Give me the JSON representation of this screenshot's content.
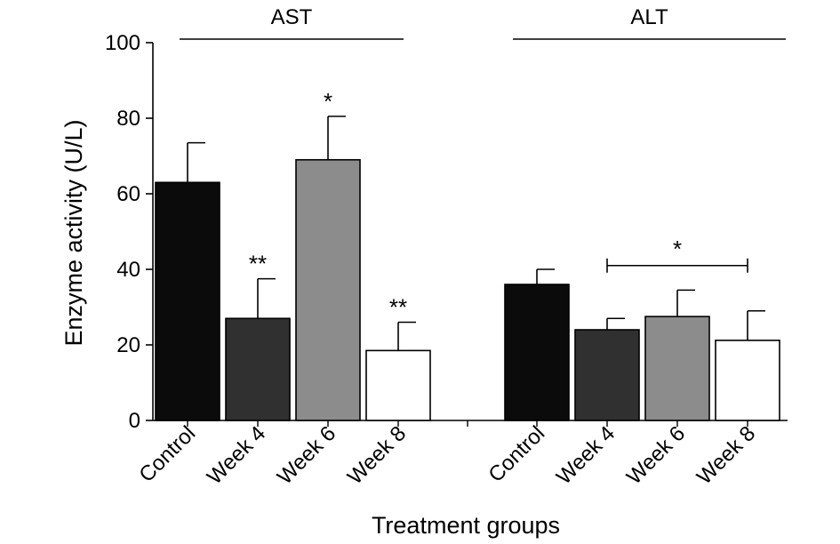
{
  "chart_data": {
    "type": "bar",
    "xlabel": "Treatment groups",
    "ylabel": "Enzyme activity (U/L)",
    "ylim": [
      0,
      100
    ],
    "yticks": [
      0,
      20,
      40,
      60,
      80,
      100
    ],
    "categories": [
      "Control",
      "Week 4",
      "Week 6",
      "Week 8"
    ],
    "bar_colors": [
      "#0b0b0b",
      "#303030",
      "#8c8c8c",
      "#ffffff"
    ],
    "groups": [
      {
        "name": "AST",
        "values": [
          63,
          27,
          69,
          18.5
        ],
        "errors": [
          10.5,
          10.5,
          11.5,
          7.5
        ],
        "significance": [
          "",
          "**",
          "*",
          "**"
        ]
      },
      {
        "name": "ALT",
        "values": [
          36,
          24,
          27.5,
          21.2
        ],
        "errors": [
          4,
          3,
          7,
          7.8
        ],
        "significance": [
          "",
          "",
          "",
          ""
        ],
        "bracket": {
          "from": "Week 4",
          "to": "Week 8",
          "label": "*",
          "y": 41
        }
      }
    ]
  }
}
